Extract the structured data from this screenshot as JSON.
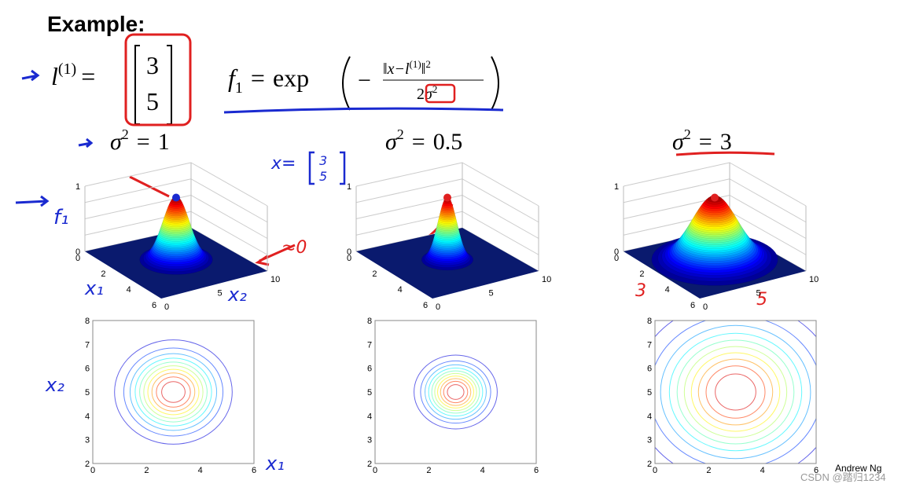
{
  "title": "Example:",
  "landmark": {
    "symbol": "l",
    "superscript": "(1)",
    "equals": "=",
    "vector": [
      "3",
      "5"
    ]
  },
  "feature": {
    "symbol": "f",
    "subscript": "1",
    "equals": "=",
    "function": "exp",
    "minus": "−",
    "numerator": "‖x−l",
    "num_superscript": "(1)",
    "num_close": "‖",
    "num_power": "2",
    "denominator": "2",
    "den_symbol": "σ",
    "den_power": "2"
  },
  "panels": [
    {
      "sigma": "σ",
      "power": "2",
      "relation": "=",
      "value": 1,
      "surface": {
        "zticks": [
          0,
          1
        ],
        "x1ticks": [
          0,
          2,
          4,
          6
        ],
        "x2ticks": [
          0,
          5,
          10
        ]
      },
      "contour": {
        "xticks": [
          0,
          2,
          4,
          6
        ],
        "yticks": [
          2,
          3,
          4,
          5,
          6,
          7,
          8
        ]
      }
    },
    {
      "sigma": "σ",
      "power": "2",
      "relation": "=",
      "value": 0.5,
      "surface": {
        "zticks": [
          0,
          1
        ],
        "x1ticks": [
          0,
          2,
          4,
          6
        ],
        "x2ticks": [
          0,
          5,
          10
        ]
      },
      "contour": {
        "xticks": [
          0,
          2,
          4,
          6
        ],
        "yticks": [
          2,
          3,
          4,
          5,
          6,
          7,
          8
        ]
      }
    },
    {
      "sigma": "σ",
      "power": "2",
      "relation": "=",
      "value": 3,
      "surface": {
        "zticks": [
          0,
          1
        ],
        "x1ticks": [
          0,
          2,
          4,
          6
        ],
        "x2ticks": [
          0,
          5,
          10
        ]
      },
      "contour": {
        "xticks": [
          0,
          2,
          4,
          6
        ],
        "yticks": [
          2,
          3,
          4,
          5,
          6,
          7,
          8
        ]
      }
    }
  ],
  "annotations": {
    "f1": "f₁",
    "x1": "x₁",
    "x2": "x₂",
    "approx_zero": "≈0",
    "x_eq": "x=",
    "x_vector": [
      "3",
      "5"
    ],
    "contour_x2": "x₂",
    "contour_x1": "x₁",
    "red_3": "3",
    "red_5": "5"
  },
  "footer": {
    "author": "Andrew Ng",
    "watermark": "CSDN @踏归1234"
  }
}
